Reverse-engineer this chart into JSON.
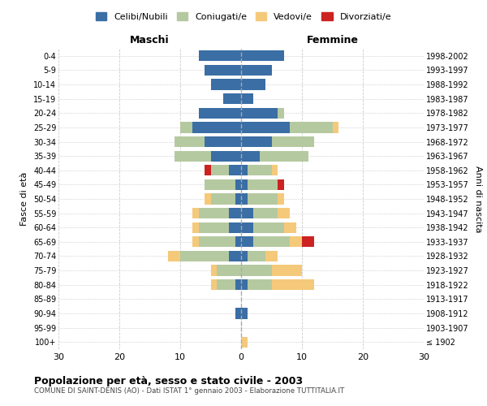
{
  "age_groups": [
    "100+",
    "95-99",
    "90-94",
    "85-89",
    "80-84",
    "75-79",
    "70-74",
    "65-69",
    "60-64",
    "55-59",
    "50-54",
    "45-49",
    "40-44",
    "35-39",
    "30-34",
    "25-29",
    "20-24",
    "15-19",
    "10-14",
    "5-9",
    "0-4"
  ],
  "birth_years": [
    "≤ 1902",
    "1903-1907",
    "1908-1912",
    "1913-1917",
    "1918-1922",
    "1923-1927",
    "1928-1932",
    "1933-1937",
    "1938-1942",
    "1943-1947",
    "1948-1952",
    "1953-1957",
    "1958-1962",
    "1963-1967",
    "1968-1972",
    "1973-1977",
    "1978-1982",
    "1983-1987",
    "1988-1992",
    "1993-1997",
    "1998-2002"
  ],
  "colors": {
    "celibi": "#3a6ea5",
    "coniugati": "#b5c9a0",
    "vedovi": "#f5c97a",
    "divorziati": "#cc2222"
  },
  "male": {
    "celibi": [
      0,
      0,
      1,
      0,
      1,
      0,
      2,
      1,
      2,
      2,
      1,
      1,
      2,
      5,
      6,
      8,
      7,
      3,
      5,
      6,
      7
    ],
    "coniugati": [
      0,
      0,
      0,
      0,
      3,
      4,
      8,
      6,
      5,
      5,
      4,
      5,
      3,
      6,
      5,
      2,
      0,
      0,
      0,
      0,
      0
    ],
    "vedovi": [
      0,
      0,
      0,
      0,
      1,
      1,
      2,
      1,
      1,
      1,
      1,
      0,
      0,
      0,
      0,
      0,
      0,
      0,
      0,
      0,
      0
    ],
    "divorziati": [
      0,
      0,
      0,
      0,
      0,
      0,
      0,
      0,
      0,
      0,
      0,
      0,
      1,
      0,
      0,
      0,
      0,
      0,
      0,
      0,
      0
    ]
  },
  "female": {
    "celibi": [
      0,
      0,
      1,
      0,
      1,
      0,
      1,
      2,
      2,
      2,
      1,
      1,
      1,
      3,
      5,
      8,
      6,
      2,
      4,
      5,
      7
    ],
    "coniugati": [
      0,
      0,
      0,
      0,
      4,
      5,
      3,
      6,
      5,
      4,
      5,
      5,
      4,
      8,
      7,
      7,
      1,
      0,
      0,
      0,
      0
    ],
    "vedovi": [
      1,
      0,
      0,
      0,
      7,
      5,
      2,
      2,
      2,
      2,
      1,
      0,
      1,
      0,
      0,
      1,
      0,
      0,
      0,
      0,
      0
    ],
    "divorziati": [
      0,
      0,
      0,
      0,
      0,
      0,
      0,
      2,
      0,
      0,
      0,
      1,
      0,
      0,
      0,
      0,
      0,
      0,
      0,
      0,
      0
    ]
  },
  "title": "Popolazione per età, sesso e stato civile - 2003",
  "subtitle": "COMUNE DI SAINT-DENIS (AO) - Dati ISTAT 1° gennaio 2003 - Elaborazione TUTTITALIA.IT",
  "xlabel_left": "Maschi",
  "xlabel_right": "Femmine",
  "ylabel_left": "Fasce di età",
  "ylabel_right": "Anni di nascita",
  "xlim": 30,
  "legend_labels": [
    "Celibi/Nubili",
    "Coniugati/e",
    "Vedovi/e",
    "Divorziati/e"
  ],
  "bg_color": "#ffffff",
  "grid_color": "#cccccc"
}
